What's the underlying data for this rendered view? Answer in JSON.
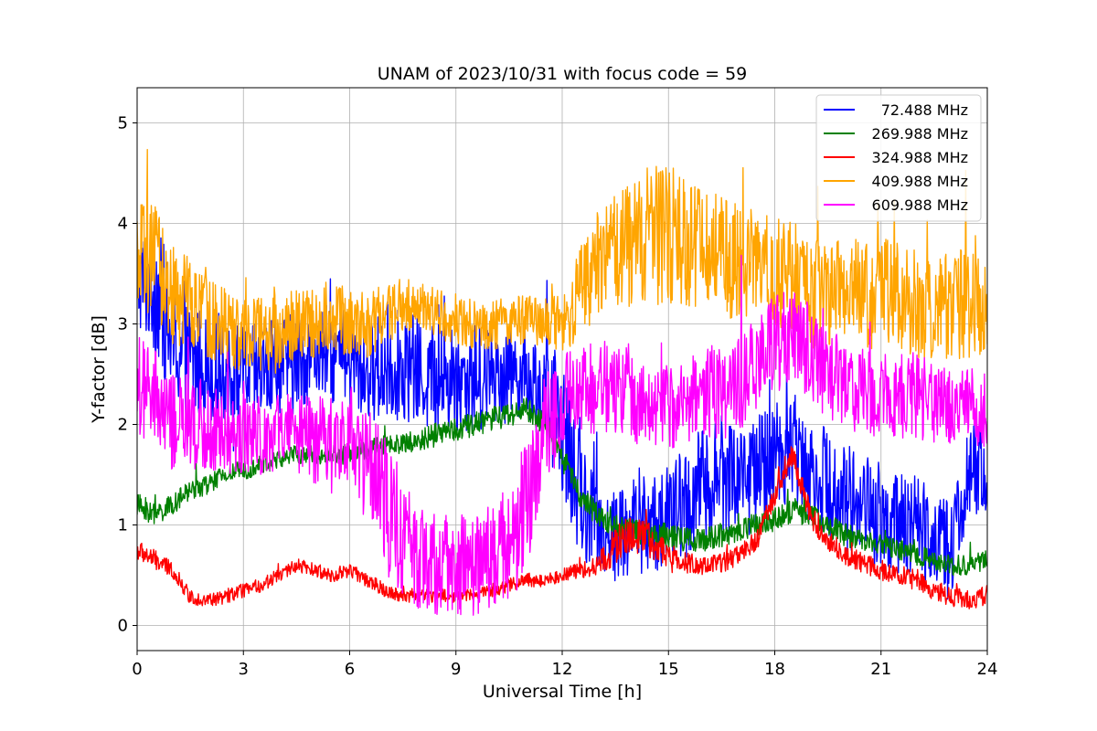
{
  "chart_data": {
    "type": "line",
    "title": "UNAM of 2023/10/31 with focus code = 59",
    "xlabel": "Universal Time [h]",
    "ylabel": "Y-factor [dB]",
    "xlim": [
      0,
      24
    ],
    "ylim": [
      -0.25,
      5.35
    ],
    "xticks": [
      0,
      3,
      6,
      9,
      12,
      15,
      18,
      21,
      24
    ],
    "yticks": [
      0,
      1,
      2,
      3,
      4,
      5
    ],
    "grid": true,
    "legend_position": "top-right",
    "series": [
      {
        "name": "72.488 MHz",
        "color": "#0000ff",
        "x": [
          0,
          0.5,
          1,
          1.5,
          2,
          2.5,
          3,
          3.5,
          4,
          4.5,
          5,
          5.5,
          6,
          6.5,
          7,
          7.5,
          8,
          8.5,
          9,
          9.5,
          10,
          10.5,
          11,
          11.5,
          12,
          12.5,
          13,
          13.5,
          14,
          14.5,
          15,
          15.5,
          16,
          16.5,
          17,
          17.5,
          18,
          18.5,
          19,
          19.5,
          20,
          20.5,
          21,
          21.5,
          22,
          22.5,
          23,
          23.5,
          24
        ],
        "y": [
          3.4,
          3.4,
          2.8,
          2.6,
          2.6,
          2.5,
          2.5,
          2.5,
          2.6,
          2.6,
          2.7,
          2.7,
          2.6,
          2.5,
          2.6,
          2.6,
          2.5,
          2.45,
          2.45,
          2.45,
          2.5,
          2.55,
          2.5,
          2.3,
          2.0,
          1.3,
          1.0,
          0.9,
          1.0,
          1.0,
          1.1,
          1.2,
          1.4,
          1.5,
          1.5,
          1.5,
          1.7,
          1.8,
          1.6,
          1.4,
          1.3,
          1.2,
          1.1,
          1.0,
          1.0,
          0.9,
          0.8,
          1.5,
          1.6
        ],
        "spread": [
          0.45,
          0.7,
          0.6,
          0.6,
          0.55,
          0.5,
          0.5,
          0.5,
          0.5,
          0.5,
          0.45,
          0.5,
          0.5,
          0.45,
          0.6,
          0.55,
          0.55,
          0.55,
          0.55,
          0.55,
          0.5,
          0.45,
          0.45,
          0.5,
          0.7,
          0.6,
          0.5,
          0.5,
          0.5,
          0.5,
          0.5,
          0.6,
          0.6,
          0.6,
          0.6,
          0.6,
          0.6,
          0.55,
          0.55,
          0.55,
          0.55,
          0.55,
          0.55,
          0.5,
          0.5,
          0.5,
          0.45,
          0.5,
          0.5
        ]
      },
      {
        "name": "269.988 MHz",
        "color": "#008000",
        "x": [
          0,
          0.5,
          1,
          1.5,
          2,
          2.5,
          3,
          3.5,
          4,
          4.5,
          5,
          5.5,
          6,
          6.5,
          7,
          7.5,
          8,
          8.5,
          9,
          9.5,
          10,
          10.5,
          11,
          11.5,
          12,
          12.5,
          13,
          13.5,
          14,
          14.5,
          15,
          15.5,
          16,
          16.5,
          17,
          17.5,
          18,
          18.5,
          19,
          19.5,
          20,
          20.5,
          21,
          21.5,
          22,
          22.5,
          23,
          23.5,
          24
        ],
        "y": [
          1.2,
          1.1,
          1.2,
          1.35,
          1.4,
          1.5,
          1.55,
          1.6,
          1.65,
          1.7,
          1.7,
          1.7,
          1.7,
          1.75,
          1.8,
          1.8,
          1.85,
          1.9,
          1.95,
          2.0,
          2.05,
          2.1,
          2.15,
          2.0,
          1.7,
          1.3,
          1.1,
          1.0,
          0.95,
          0.9,
          0.9,
          0.85,
          0.85,
          0.9,
          0.95,
          1.0,
          1.05,
          1.15,
          1.1,
          1.0,
          0.9,
          0.85,
          0.8,
          0.75,
          0.7,
          0.65,
          0.6,
          0.6,
          0.65
        ],
        "spread": [
          0.12,
          0.12,
          0.1,
          0.1,
          0.1,
          0.1,
          0.1,
          0.1,
          0.1,
          0.1,
          0.1,
          0.1,
          0.1,
          0.1,
          0.1,
          0.1,
          0.12,
          0.12,
          0.12,
          0.12,
          0.12,
          0.12,
          0.12,
          0.12,
          0.12,
          0.12,
          0.12,
          0.12,
          0.12,
          0.12,
          0.12,
          0.12,
          0.12,
          0.12,
          0.12,
          0.12,
          0.12,
          0.12,
          0.12,
          0.12,
          0.12,
          0.1,
          0.1,
          0.1,
          0.1,
          0.1,
          0.1,
          0.1,
          0.1
        ]
      },
      {
        "name": "324.988 MHz",
        "color": "#ff0000",
        "x": [
          0,
          0.5,
          1,
          1.5,
          2,
          2.5,
          3,
          3.5,
          4,
          4.5,
          5,
          5.5,
          6,
          6.5,
          7,
          7.5,
          8,
          8.5,
          9,
          9.5,
          10,
          10.5,
          11,
          11.5,
          12,
          12.5,
          13,
          13.5,
          14,
          14.5,
          15,
          15.5,
          16,
          16.5,
          17,
          17.5,
          18,
          18.5,
          19,
          19.5,
          20,
          20.5,
          21,
          21.5,
          22,
          22.5,
          23,
          23.5,
          24
        ],
        "y": [
          0.75,
          0.65,
          0.55,
          0.28,
          0.25,
          0.28,
          0.35,
          0.4,
          0.5,
          0.6,
          0.55,
          0.5,
          0.55,
          0.45,
          0.35,
          0.3,
          0.3,
          0.3,
          0.3,
          0.32,
          0.35,
          0.4,
          0.45,
          0.45,
          0.5,
          0.55,
          0.6,
          0.8,
          0.9,
          0.85,
          0.7,
          0.62,
          0.6,
          0.62,
          0.7,
          0.85,
          1.3,
          1.7,
          1.1,
          0.85,
          0.7,
          0.62,
          0.55,
          0.5,
          0.45,
          0.35,
          0.28,
          0.25,
          0.3
        ],
        "spread": [
          0.1,
          0.1,
          0.08,
          0.07,
          0.07,
          0.07,
          0.07,
          0.07,
          0.07,
          0.07,
          0.07,
          0.07,
          0.07,
          0.07,
          0.07,
          0.07,
          0.07,
          0.07,
          0.07,
          0.07,
          0.07,
          0.07,
          0.07,
          0.07,
          0.07,
          0.08,
          0.1,
          0.2,
          0.2,
          0.18,
          0.12,
          0.1,
          0.1,
          0.1,
          0.1,
          0.1,
          0.12,
          0.12,
          0.12,
          0.12,
          0.1,
          0.1,
          0.1,
          0.1,
          0.1,
          0.1,
          0.1,
          0.1,
          0.1
        ]
      },
      {
        "name": "409.988 MHz",
        "color": "#ffa500",
        "x": [
          0,
          0.5,
          1,
          1.5,
          2,
          2.5,
          3,
          3.5,
          4,
          4.5,
          5,
          5.5,
          6,
          6.5,
          7,
          7.5,
          8,
          8.5,
          9,
          9.5,
          10,
          10.5,
          11,
          11.5,
          12,
          12.5,
          13,
          13.5,
          14,
          14.5,
          15,
          15.5,
          16,
          16.5,
          17,
          17.5,
          18,
          18.5,
          19,
          19.5,
          20,
          20.5,
          21,
          21.5,
          22,
          22.5,
          23,
          23.5,
          24
        ],
        "y": [
          3.6,
          3.6,
          3.3,
          3.2,
          3.1,
          3.0,
          2.9,
          2.9,
          2.9,
          3.0,
          3.0,
          3.1,
          3.0,
          3.0,
          3.1,
          3.2,
          3.2,
          3.1,
          3.05,
          3.0,
          3.0,
          3.0,
          3.05,
          3.0,
          3.0,
          3.3,
          3.6,
          3.7,
          3.8,
          3.9,
          3.9,
          3.8,
          3.7,
          3.7,
          3.6,
          3.6,
          3.5,
          3.5,
          3.3,
          3.3,
          3.3,
          3.3,
          3.3,
          3.3,
          3.2,
          3.2,
          3.2,
          3.2,
          3.1
        ],
        "spread": [
          0.6,
          0.6,
          0.5,
          0.45,
          0.45,
          0.4,
          0.4,
          0.4,
          0.4,
          0.35,
          0.35,
          0.35,
          0.35,
          0.35,
          0.3,
          0.3,
          0.25,
          0.25,
          0.25,
          0.25,
          0.25,
          0.25,
          0.25,
          0.25,
          0.3,
          0.45,
          0.55,
          0.6,
          0.65,
          0.7,
          0.7,
          0.65,
          0.6,
          0.6,
          0.6,
          0.55,
          0.55,
          0.55,
          0.55,
          0.5,
          0.55,
          0.55,
          0.55,
          0.55,
          0.55,
          0.55,
          0.55,
          0.55,
          0.5
        ]
      },
      {
        "name": "609.988 MHz",
        "color": "#ff00ff",
        "x": [
          0,
          0.5,
          1,
          1.5,
          2,
          2.5,
          3,
          3.5,
          4,
          4.5,
          5,
          5.5,
          6,
          6.5,
          7,
          7.5,
          8,
          8.5,
          9,
          9.5,
          10,
          10.5,
          11,
          11.5,
          12,
          12.5,
          13,
          13.5,
          14,
          14.5,
          15,
          15.5,
          16,
          16.5,
          17,
          17.5,
          18,
          18.5,
          19,
          19.5,
          20,
          20.5,
          21,
          21.5,
          22,
          22.5,
          23,
          23.5,
          24
        ],
        "y": [
          2.4,
          2.2,
          2.0,
          2.0,
          2.0,
          1.9,
          1.9,
          1.9,
          1.9,
          1.9,
          1.85,
          1.9,
          1.9,
          1.6,
          1.2,
          0.9,
          0.7,
          0.6,
          0.6,
          0.6,
          0.7,
          0.8,
          1.2,
          1.9,
          2.2,
          2.3,
          2.4,
          2.4,
          2.3,
          2.2,
          2.2,
          2.2,
          2.3,
          2.3,
          2.4,
          2.6,
          2.8,
          2.9,
          2.7,
          2.5,
          2.4,
          2.3,
          2.3,
          2.3,
          2.3,
          2.2,
          2.2,
          2.2,
          2.1
        ],
        "spread": [
          0.5,
          0.55,
          0.5,
          0.5,
          0.45,
          0.45,
          0.4,
          0.4,
          0.4,
          0.4,
          0.45,
          0.45,
          0.45,
          0.6,
          0.7,
          0.6,
          0.55,
          0.5,
          0.5,
          0.5,
          0.55,
          0.6,
          0.7,
          0.6,
          0.5,
          0.5,
          0.5,
          0.5,
          0.5,
          0.45,
          0.45,
          0.45,
          0.45,
          0.45,
          0.5,
          0.5,
          0.5,
          0.5,
          0.5,
          0.45,
          0.45,
          0.45,
          0.45,
          0.45,
          0.45,
          0.4,
          0.4,
          0.4,
          0.4
        ]
      }
    ]
  }
}
